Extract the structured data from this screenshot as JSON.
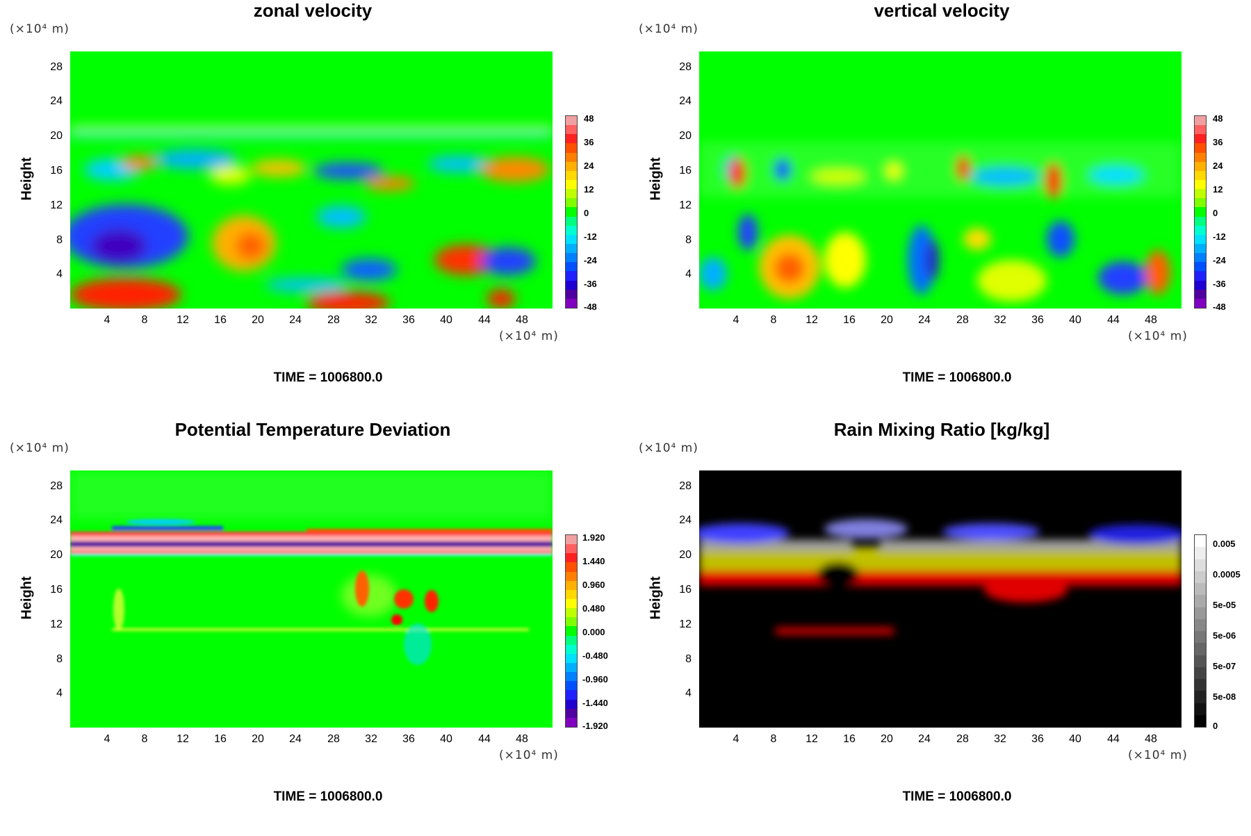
{
  "chart_data": [
    {
      "type": "heatmap",
      "title": "zonal velocity",
      "ylabel": "Height",
      "y_unit": "(×10⁴ m)",
      "x_unit": "(×10⁴ m)",
      "x_ticks": [
        "4",
        "8",
        "12",
        "16",
        "20",
        "24",
        "28",
        "32",
        "36",
        "40",
        "44",
        "48"
      ],
      "y_ticks": [
        "4",
        "8",
        "12",
        "16",
        "20",
        "24",
        "28"
      ],
      "xlim": [
        0,
        51.2
      ],
      "ylim": [
        0,
        29.8
      ],
      "colorbar_labels": [
        "48",
        "36",
        "24",
        "12",
        "0",
        "-12",
        "-24",
        "-36",
        "-48"
      ],
      "colormap": "rainbow",
      "time_label": "TIME = 1006800.0"
    },
    {
      "type": "heatmap",
      "title": "vertical velocity",
      "ylabel": "Height",
      "y_unit": "(×10⁴ m)",
      "x_unit": "(×10⁴ m)",
      "x_ticks": [
        "4",
        "8",
        "12",
        "16",
        "20",
        "24",
        "28",
        "32",
        "36",
        "40",
        "44",
        "48"
      ],
      "y_ticks": [
        "4",
        "8",
        "12",
        "16",
        "20",
        "24",
        "28"
      ],
      "xlim": [
        0,
        51.2
      ],
      "ylim": [
        0,
        29.8
      ],
      "colorbar_labels": [
        "48",
        "36",
        "24",
        "12",
        "0",
        "-12",
        "-24",
        "-36",
        "-48"
      ],
      "colormap": "rainbow",
      "time_label": "TIME = 1006800.0"
    },
    {
      "type": "heatmap",
      "title": "Potential Temperature Deviation",
      "ylabel": "Height",
      "y_unit": "(×10⁴ m)",
      "x_unit": "(×10⁴ m)",
      "x_ticks": [
        "4",
        "8",
        "12",
        "16",
        "20",
        "24",
        "28",
        "32",
        "36",
        "40",
        "44",
        "48"
      ],
      "y_ticks": [
        "4",
        "8",
        "12",
        "16",
        "20",
        "24",
        "28"
      ],
      "xlim": [
        0,
        51.2
      ],
      "ylim": [
        0,
        29.8
      ],
      "colorbar_labels": [
        "1.920",
        "1.440",
        "0.960",
        "0.480",
        "0.000",
        "-0.480",
        "-0.960",
        "-1.440",
        "-1.920"
      ],
      "colormap": "rainbow",
      "time_label": "TIME = 1006800.0"
    },
    {
      "type": "heatmap",
      "title": "Rain Mixing Ratio [kg/kg]",
      "ylabel": "Height",
      "y_unit": "(×10⁴ m)",
      "x_unit": "(×10⁴ m)",
      "x_ticks": [
        "4",
        "8",
        "12",
        "16",
        "20",
        "24",
        "28",
        "32",
        "36",
        "40",
        "44",
        "48"
      ],
      "y_ticks": [
        "4",
        "8",
        "12",
        "16",
        "20",
        "24",
        "28"
      ],
      "xlim": [
        0,
        51.2
      ],
      "ylim": [
        0,
        29.8
      ],
      "colorbar_labels": [
        "0.005",
        "0.0005",
        "5e-05",
        "5e-06",
        "5e-07",
        "5e-08",
        "0"
      ],
      "colormap": "grayscale",
      "time_label": "TIME = 1006800.0"
    }
  ],
  "colors": {
    "background_field": "#00ff00",
    "rain_background": "#000000"
  }
}
